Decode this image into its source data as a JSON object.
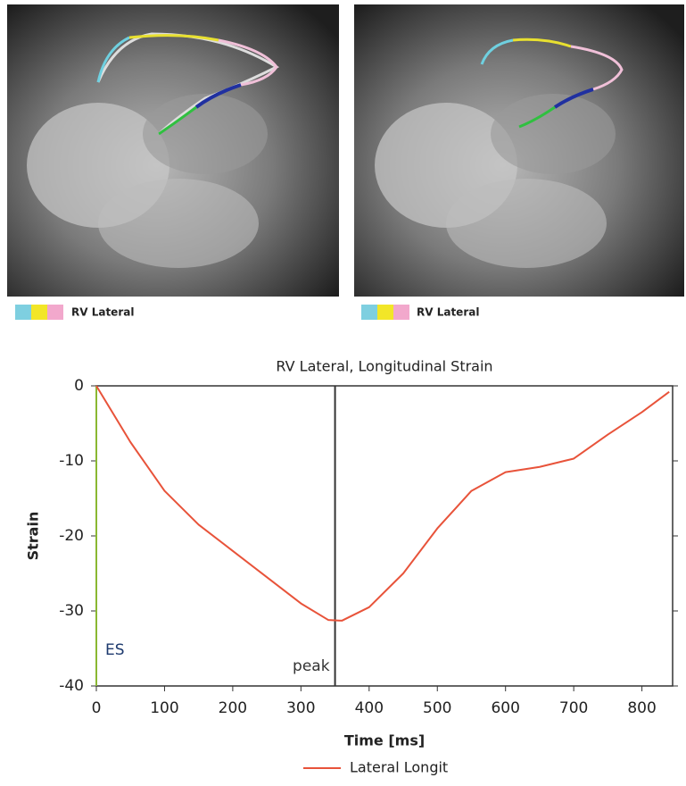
{
  "images": [
    {
      "legend_label": "RV Lateral"
    },
    {
      "legend_label": "RV Lateral"
    }
  ],
  "chart_data": {
    "type": "line",
    "title": "RV Lateral, Longitudinal Strain",
    "x_label": "Time [ms]",
    "y_label": "Strain",
    "x": [
      0,
      50,
      100,
      150,
      200,
      250,
      300,
      340,
      360,
      400,
      450,
      500,
      550,
      600,
      650,
      700,
      750,
      800,
      840
    ],
    "series": [
      {
        "name": "Lateral Longit",
        "color": "#e8533a",
        "values": [
          0,
          -7.5,
          -14,
          -18.5,
          -22,
          -25.5,
          -29,
          -31.2,
          -31.3,
          -29.5,
          -25,
          -19,
          -14,
          -11.5,
          -10.8,
          -9.7,
          -6.5,
          -3.5,
          -0.8
        ]
      }
    ],
    "xlim": [
      0,
      845
    ],
    "ylim": [
      -40,
      0
    ],
    "xticks": [
      0,
      100,
      200,
      300,
      400,
      500,
      600,
      700,
      800
    ],
    "yticks": [
      -40,
      -30,
      -20,
      -10,
      0
    ],
    "vlines": [
      {
        "x": 0,
        "label": "ES",
        "color": "#8ab832"
      },
      {
        "x": 350,
        "label": "peak",
        "color": "#333333"
      }
    ]
  }
}
